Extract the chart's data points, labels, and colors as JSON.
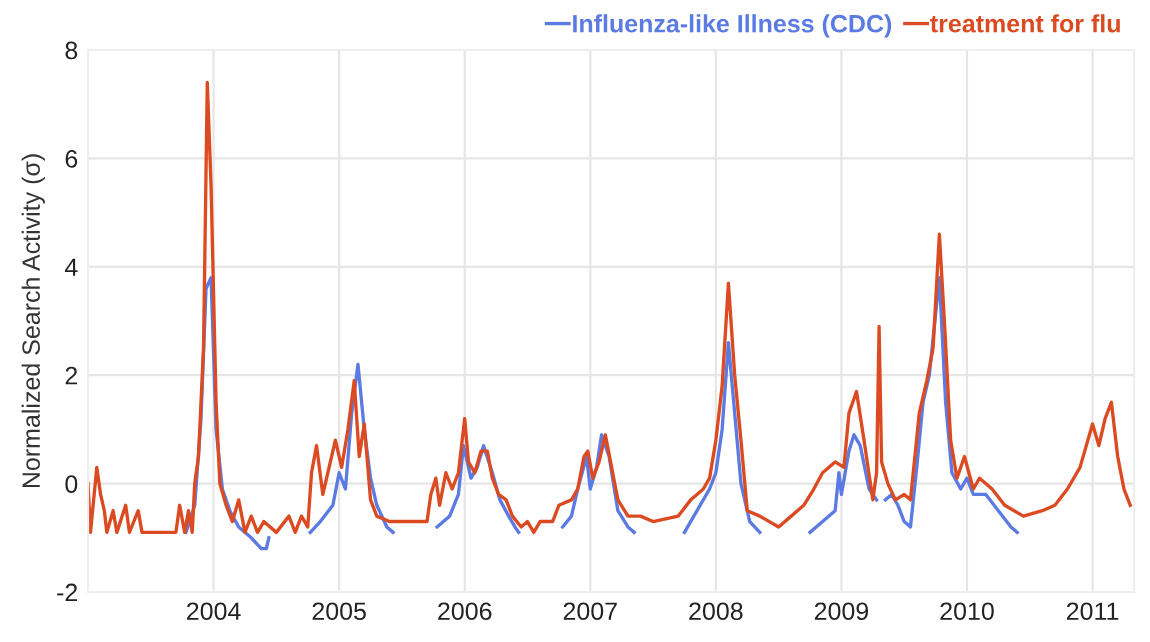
{
  "chart_data": {
    "type": "line",
    "ylabel": "Normalized Search Activity (σ)",
    "xlim": [
      2003.0,
      2011.33
    ],
    "xticks": [
      2004,
      2005,
      2006,
      2007,
      2008,
      2009,
      2010,
      2011
    ],
    "ylim": [
      -2,
      8
    ],
    "yticks": [
      -2,
      0,
      2,
      4,
      6,
      8
    ],
    "grid": true,
    "legend": "top right",
    "marker": "none",
    "line_style": "solid",
    "series": [
      {
        "name": "Influenza-like Illness (CDC)",
        "color": "#5b7be3",
        "x": [
          2003.78,
          2003.85,
          2003.9,
          2003.94,
          2003.98,
          2004.02,
          2004.07,
          2004.13,
          2004.2,
          2004.3,
          2004.38,
          2004.42,
          2004.44,
          2004.6,
          2004.77,
          2004.85,
          2004.95,
          2005.0,
          2005.05,
          2005.1,
          2005.15,
          2005.2,
          2005.25,
          2005.3,
          2005.38,
          2005.43,
          2005.6,
          2005.78,
          2005.88,
          2005.95,
          2005.99,
          2006.05,
          2006.1,
          2006.15,
          2006.22,
          2006.28,
          2006.35,
          2006.4,
          2006.43,
          2006.6,
          2006.78,
          2006.85,
          2006.9,
          2006.97,
          2007.0,
          2007.05,
          2007.09,
          2007.15,
          2007.22,
          2007.3,
          2007.35,
          2007.55,
          2007.75,
          2007.85,
          2007.95,
          2008.0,
          2008.05,
          2008.1,
          2008.15,
          2008.2,
          2008.27,
          2008.35,
          2008.55,
          2008.75,
          2008.85,
          2008.95,
          2008.98,
          2009.0,
          2009.06,
          2009.1,
          2009.15,
          2009.22,
          2009.28,
          2009.32,
          2009.35,
          2009.4,
          2009.45,
          2009.5,
          2009.55,
          2009.6,
          2009.65,
          2009.7,
          2009.78,
          2009.83,
          2009.88,
          2009.95,
          2010.0,
          2010.05,
          2010.15,
          2010.25,
          2010.35,
          2010.4
        ],
        "values": [
          -0.9,
          -0.4,
          1.2,
          3.6,
          3.8,
          1.0,
          -0.1,
          -0.5,
          -0.8,
          -1.0,
          -1.2,
          -1.2,
          -1.0,
          null,
          -0.9,
          -0.7,
          -0.4,
          0.2,
          -0.1,
          1.3,
          2.2,
          1.0,
          0.1,
          -0.4,
          -0.8,
          -0.9,
          null,
          -0.8,
          -0.6,
          -0.2,
          0.7,
          0.1,
          0.3,
          0.7,
          0.2,
          -0.3,
          -0.6,
          -0.8,
          -0.9,
          null,
          -0.8,
          -0.6,
          -0.1,
          0.5,
          -0.1,
          0.3,
          0.9,
          0.5,
          -0.5,
          -0.8,
          -0.9,
          null,
          -0.9,
          -0.5,
          -0.1,
          0.2,
          1.0,
          2.6,
          1.3,
          0.0,
          -0.7,
          -0.9,
          null,
          -0.9,
          -0.7,
          -0.5,
          0.2,
          -0.2,
          0.6,
          0.9,
          0.7,
          -0.1,
          -0.3,
          null,
          -0.3,
          -0.2,
          -0.4,
          -0.7,
          -0.8,
          0.3,
          1.5,
          2.0,
          3.8,
          1.5,
          0.2,
          -0.1,
          0.1,
          -0.2,
          -0.2,
          -0.5,
          -0.8,
          -0.9
        ]
      },
      {
        "name": "treatment for flu",
        "color": "#dc4a22",
        "x": [
          2003.0,
          2003.02,
          2003.07,
          2003.1,
          2003.13,
          2003.15,
          2003.2,
          2003.23,
          2003.3,
          2003.33,
          2003.4,
          2003.43,
          2003.7,
          2003.73,
          2003.77,
          2003.8,
          2003.83,
          2003.85,
          2003.88,
          2003.92,
          2003.95,
          2003.98,
          2004.02,
          2004.05,
          2004.1,
          2004.15,
          2004.2,
          2004.25,
          2004.3,
          2004.35,
          2004.4,
          2004.5,
          2004.6,
          2004.65,
          2004.7,
          2004.75,
          2004.78,
          2004.82,
          2004.87,
          2004.92,
          2004.97,
          2005.02,
          2005.07,
          2005.12,
          2005.16,
          2005.2,
          2005.25,
          2005.3,
          2005.4,
          2005.6,
          2005.7,
          2005.73,
          2005.77,
          2005.8,
          2005.85,
          2005.9,
          2005.95,
          2006.0,
          2006.03,
          2006.08,
          2006.13,
          2006.18,
          2006.22,
          2006.27,
          2006.33,
          2006.38,
          2006.45,
          2006.5,
          2006.55,
          2006.6,
          2006.7,
          2006.75,
          2006.85,
          2006.9,
          2006.95,
          2006.98,
          2007.02,
          2007.07,
          2007.12,
          2007.17,
          2007.22,
          2007.3,
          2007.4,
          2007.5,
          2007.7,
          2007.8,
          2007.85,
          2007.9,
          2007.95,
          2008.0,
          2008.05,
          2008.1,
          2008.15,
          2008.2,
          2008.25,
          2008.35,
          2008.5,
          2008.6,
          2008.7,
          2008.78,
          2008.85,
          2008.95,
          2009.02,
          2009.06,
          2009.12,
          2009.18,
          2009.25,
          2009.28,
          2009.3,
          2009.32,
          2009.37,
          2009.43,
          2009.5,
          2009.55,
          2009.62,
          2009.68,
          2009.73,
          2009.78,
          2009.82,
          2009.87,
          2009.92,
          2009.98,
          2010.05,
          2010.1,
          2010.2,
          2010.3,
          2010.45,
          2010.6,
          2010.7,
          2010.8,
          2010.9,
          2011.0,
          2011.05,
          2011.1,
          2011.15,
          2011.2,
          2011.25,
          2011.3
        ],
        "values": [
          0,
          -0.9,
          0.3,
          -0.2,
          -0.5,
          -0.9,
          -0.5,
          -0.9,
          -0.4,
          -0.9,
          -0.5,
          -0.9,
          -0.9,
          -0.4,
          -0.9,
          -0.5,
          -0.9,
          0,
          0.5,
          2.5,
          7.4,
          5.5,
          1.5,
          0,
          -0.4,
          -0.7,
          -0.3,
          -0.9,
          -0.6,
          -0.9,
          -0.7,
          -0.9,
          -0.6,
          -0.9,
          -0.6,
          -0.8,
          0.2,
          0.7,
          -0.2,
          0.3,
          0.8,
          0.3,
          1.0,
          1.9,
          0.5,
          1.1,
          -0.3,
          -0.6,
          -0.7,
          -0.7,
          -0.7,
          -0.2,
          0.1,
          -0.4,
          0.2,
          -0.1,
          0.2,
          1.2,
          0.4,
          0.2,
          0.6,
          0.6,
          0.1,
          -0.2,
          -0.3,
          -0.6,
          -0.8,
          -0.7,
          -0.9,
          -0.7,
          -0.7,
          -0.4,
          -0.3,
          -0.1,
          0.5,
          0.6,
          0.1,
          0.4,
          0.9,
          0.3,
          -0.3,
          -0.6,
          -0.6,
          -0.7,
          -0.6,
          -0.3,
          -0.2,
          -0.1,
          0.1,
          0.8,
          1.8,
          3.7,
          2.0,
          0.8,
          -0.5,
          -0.6,
          -0.8,
          -0.6,
          -0.4,
          -0.1,
          0.2,
          0.4,
          0.3,
          1.3,
          1.7,
          0.8,
          -0.3,
          0.2,
          2.9,
          0.4,
          0,
          -0.3,
          -0.2,
          -0.3,
          1.3,
          1.9,
          2.5,
          4.6,
          3.0,
          0.8,
          0.1,
          0.5,
          -0.1,
          0.1,
          -0.1,
          -0.4,
          -0.6,
          -0.5,
          -0.4,
          -0.1,
          0.3,
          1.1,
          0.7,
          1.2,
          1.5,
          0.5,
          -0.1,
          -0.4
        ]
      }
    ]
  }
}
